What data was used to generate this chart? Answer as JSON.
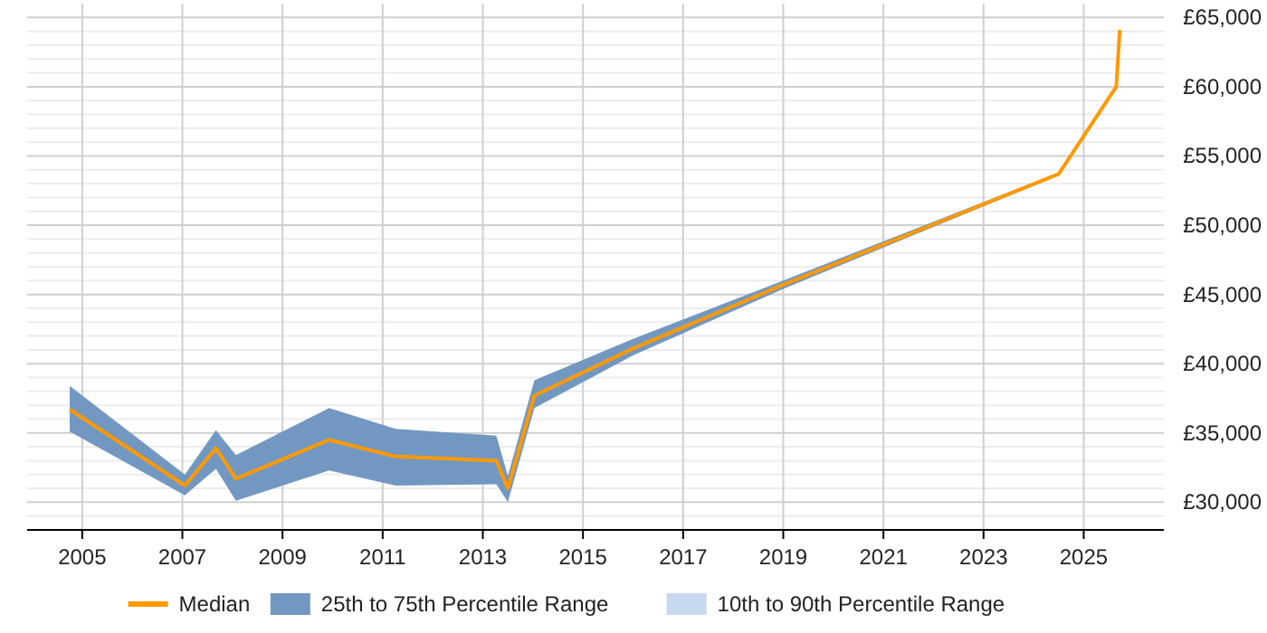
{
  "chart_data": {
    "type": "line",
    "x": [
      2004.75,
      2007.05,
      2007.67,
      2008.07,
      2009.93,
      2011.26,
      2013.27,
      2013.5,
      2014.03,
      2016.0,
      2019.0,
      2024.5,
      2025.65,
      2025.72
    ],
    "series": [
      {
        "name": "Median",
        "color": "#ff9900",
        "values": [
          36700,
          31200,
          33900,
          31700,
          34500,
          33300,
          33000,
          31000,
          37700,
          41100,
          45700,
          53700,
          60000,
          64100
        ]
      },
      {
        "name": "25th to 75th Percentile Range",
        "color": "#7298c2",
        "type": "area",
        "values": [
          null,
          null,
          null,
          null,
          null,
          null,
          null,
          null,
          null,
          null,
          null,
          null,
          null,
          null
        ],
        "lower": [
          35100,
          30500,
          32400,
          30100,
          32300,
          31200,
          31300,
          30000,
          36800,
          40600,
          45400,
          53600,
          null,
          null
        ],
        "upper": [
          38400,
          32000,
          35200,
          33400,
          36800,
          35300,
          34800,
          31900,
          38800,
          41800,
          46000,
          53800,
          null,
          null
        ]
      },
      {
        "name": "10th to 90th Percentile Range",
        "color": "#c6d9ee",
        "type": "area",
        "values": [
          null,
          null,
          null,
          null,
          null,
          null,
          null,
          null,
          null,
          null,
          null,
          null,
          null,
          null
        ],
        "lower": [
          null,
          null,
          null,
          null,
          null,
          null,
          null,
          null,
          null,
          null,
          null,
          null,
          null,
          null
        ],
        "upper": [
          null,
          null,
          null,
          null,
          null,
          null,
          null,
          null,
          null,
          null,
          null,
          null,
          null,
          null
        ]
      }
    ],
    "xlim": [
      2003.9,
      2026.6
    ],
    "xticks": [
      2005,
      2007,
      2009,
      2011,
      2013,
      2015,
      2017,
      2019,
      2021,
      2023,
      2025
    ],
    "ylim": [
      28000,
      66000
    ],
    "yticks": [
      {
        "value": 29000,
        "label": null
      },
      {
        "value": 30000,
        "label": "£30,000"
      },
      {
        "value": 31000,
        "label": null
      },
      {
        "value": 32000,
        "label": null
      },
      {
        "value": 33000,
        "label": null
      },
      {
        "value": 34000,
        "label": null
      },
      {
        "value": 35000,
        "label": "£35,000"
      },
      {
        "value": 36000,
        "label": null
      },
      {
        "value": 37000,
        "label": null
      },
      {
        "value": 38000,
        "label": null
      },
      {
        "value": 39000,
        "label": null
      },
      {
        "value": 40000,
        "label": "£40,000"
      },
      {
        "value": 41000,
        "label": null
      },
      {
        "value": 42000,
        "label": null
      },
      {
        "value": 43000,
        "label": null
      },
      {
        "value": 44000,
        "label": null
      },
      {
        "value": 45000,
        "label": "£45,000"
      },
      {
        "value": 46000,
        "label": null
      },
      {
        "value": 47000,
        "label": null
      },
      {
        "value": 48000,
        "label": null
      },
      {
        "value": 49000,
        "label": null
      },
      {
        "value": 50000,
        "label": "£50,000"
      },
      {
        "value": 51000,
        "label": null
      },
      {
        "value": 52000,
        "label": null
      },
      {
        "value": 53000,
        "label": null
      },
      {
        "value": 54000,
        "label": null
      },
      {
        "value": 55000,
        "label": "£55,000"
      },
      {
        "value": 56000,
        "label": null
      },
      {
        "value": 57000,
        "label": null
      },
      {
        "value": 58000,
        "label": null
      },
      {
        "value": 59000,
        "label": null
      },
      {
        "value": 60000,
        "label": "£60,000"
      },
      {
        "value": 61000,
        "label": null
      },
      {
        "value": 62000,
        "label": null
      },
      {
        "value": 63000,
        "label": null
      },
      {
        "value": 64000,
        "label": null
      },
      {
        "value": 65000,
        "label": "£65,000"
      }
    ],
    "grid": true,
    "legend": "bottom",
    "marker": "none",
    "line_style": "solid"
  }
}
